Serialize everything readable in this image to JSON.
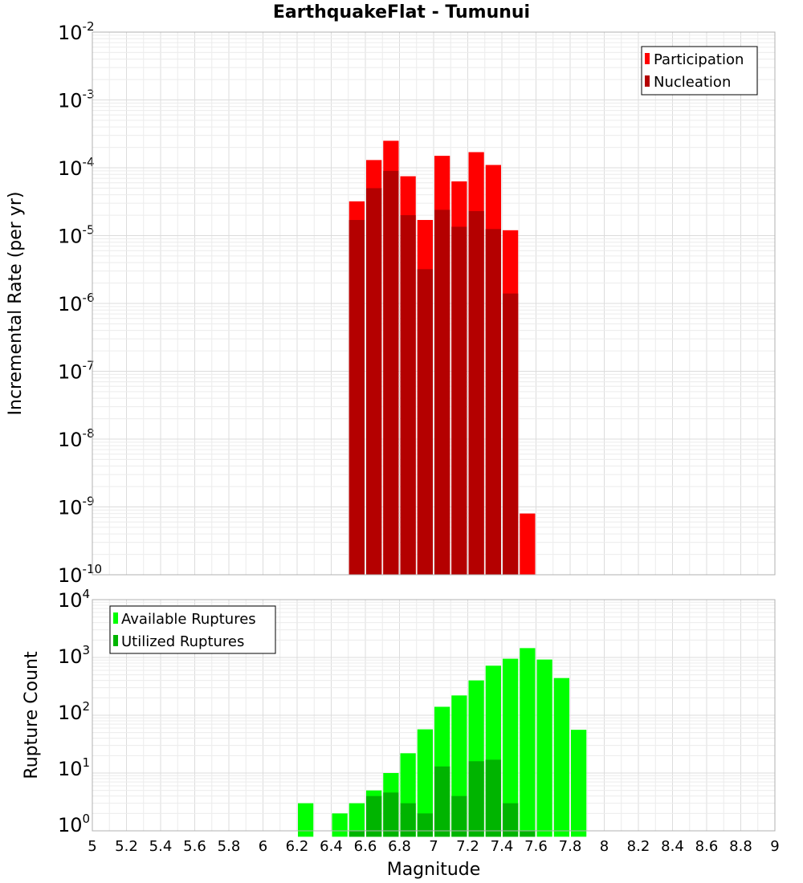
{
  "title": "EarthquakeFlat - Tumunui",
  "chart_data": [
    {
      "type": "bar",
      "scale": "log",
      "ylabel": "Incremental Rate (per yr)",
      "ylim_exponents": [
        -10,
        -2
      ],
      "xlim": [
        5,
        9
      ],
      "grid": true,
      "legend_placement": "top-right",
      "series": [
        {
          "name": "Participation",
          "color": "#ff0000",
          "x": [
            6.55,
            6.65,
            6.75,
            6.85,
            6.95,
            7.05,
            7.15,
            7.25,
            7.35,
            7.45,
            7.55
          ],
          "values": [
            3.2e-05,
            0.00013,
            0.00025,
            7.5e-05,
            1.7e-05,
            0.00015,
            6.3e-05,
            0.00017,
            0.00011,
            1.2e-05,
            8e-10
          ]
        },
        {
          "name": "Nucleation",
          "color": "#b40000",
          "x": [
            6.55,
            6.65,
            6.75,
            6.85,
            6.95,
            7.05,
            7.15,
            7.25,
            7.35,
            7.45
          ],
          "values": [
            1.7e-05,
            5e-05,
            9e-05,
            2e-05,
            3.2e-06,
            2.4e-05,
            1.35e-05,
            2.3e-05,
            1.25e-05,
            1.4e-06
          ]
        }
      ]
    },
    {
      "type": "bar",
      "scale": "log",
      "ylabel": "Rupture Count",
      "xlabel": "Magnitude",
      "ylim_exponents": [
        0,
        4
      ],
      "xlim": [
        5,
        9
      ],
      "grid": true,
      "legend_placement": "top-left",
      "series": [
        {
          "name": "Available Ruptures",
          "color": "#00ff00",
          "x": [
            6.25,
            6.45,
            6.55,
            6.65,
            6.75,
            6.85,
            6.95,
            7.05,
            7.15,
            7.25,
            7.35,
            7.45,
            7.55,
            7.65,
            7.75,
            7.85
          ],
          "values": [
            3,
            2,
            3,
            5,
            10,
            22,
            57,
            140,
            220,
            400,
            720,
            950,
            1450,
            920,
            440,
            56
          ]
        },
        {
          "name": "Utilized Ruptures",
          "color": "#00b400",
          "x": [
            6.55,
            6.65,
            6.75,
            6.85,
            6.95,
            7.05,
            7.15,
            7.25,
            7.35,
            7.45,
            7.55
          ],
          "values": [
            1,
            4,
            4.6,
            3,
            2,
            13,
            4,
            16,
            17,
            3,
            1
          ]
        }
      ]
    }
  ],
  "x_ticks": [
    "5",
    "5.2",
    "5.4",
    "5.6",
    "5.8",
    "6",
    "6.2",
    "6.4",
    "6.6",
    "6.8",
    "7",
    "7.2",
    "7.4",
    "7.6",
    "7.8",
    "8",
    "8.2",
    "8.4",
    "8.6",
    "8.8",
    "9"
  ],
  "top_y_ticks": [
    {
      "base": "10",
      "exp": "-2"
    },
    {
      "base": "10",
      "exp": "-3"
    },
    {
      "base": "10",
      "exp": "-4"
    },
    {
      "base": "10",
      "exp": "-5"
    },
    {
      "base": "10",
      "exp": "-6"
    },
    {
      "base": "10",
      "exp": "-7"
    },
    {
      "base": "10",
      "exp": "-8"
    },
    {
      "base": "10",
      "exp": "-9"
    },
    {
      "base": "10",
      "exp": "-10"
    }
  ],
  "bottom_y_ticks": [
    {
      "base": "10",
      "exp": "4"
    },
    {
      "base": "10",
      "exp": "3"
    },
    {
      "base": "10",
      "exp": "2"
    },
    {
      "base": "10",
      "exp": "1"
    },
    {
      "base": "10",
      "exp": "0"
    }
  ]
}
